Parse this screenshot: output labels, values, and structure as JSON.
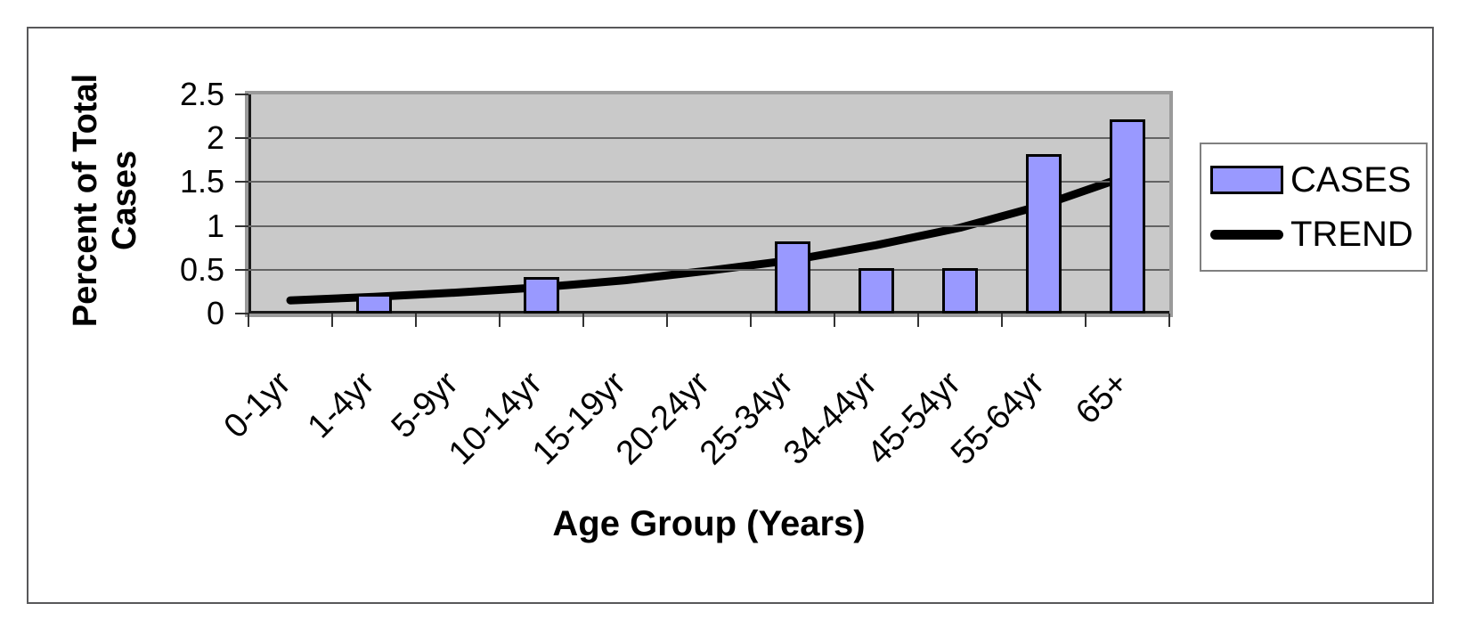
{
  "chart_data": {
    "type": "bar",
    "categories": [
      "0-1yr",
      "1-4yr",
      "5-9yr",
      "10-14yr",
      "15-19yr",
      "20-24yr",
      "25-34yr",
      "34-44yr",
      "45-54yr",
      "55-64yr",
      "65+"
    ],
    "series": [
      {
        "name": "CASES",
        "type": "bar",
        "color": "#9999FF",
        "values": [
          0,
          0.2,
          0,
          0.4,
          0,
          0,
          0.8,
          0.5,
          0.5,
          1.8,
          2.2
        ]
      },
      {
        "name": "TREND",
        "type": "line",
        "color": "#000000",
        "values": [
          0.15,
          0.19,
          0.24,
          0.3,
          0.38,
          0.49,
          0.61,
          0.78,
          0.98,
          1.24,
          1.57
        ]
      }
    ],
    "xlabel": "Age Group (Years)",
    "ylabel": "Percent of Total Cases",
    "ylabel_lines": [
      "Percent of Total",
      "Cases"
    ],
    "ylim": [
      0,
      2.5
    ],
    "y_ticks": [
      "0",
      "0.5",
      "1",
      "1.5",
      "2",
      "2.5"
    ],
    "x_tick_rotation_deg": 45,
    "grid": true,
    "legend_position": "right",
    "plot_bg_color": "#C9C9C9",
    "gridline_color": "#636363",
    "axis_color": "#1a1a1a"
  }
}
